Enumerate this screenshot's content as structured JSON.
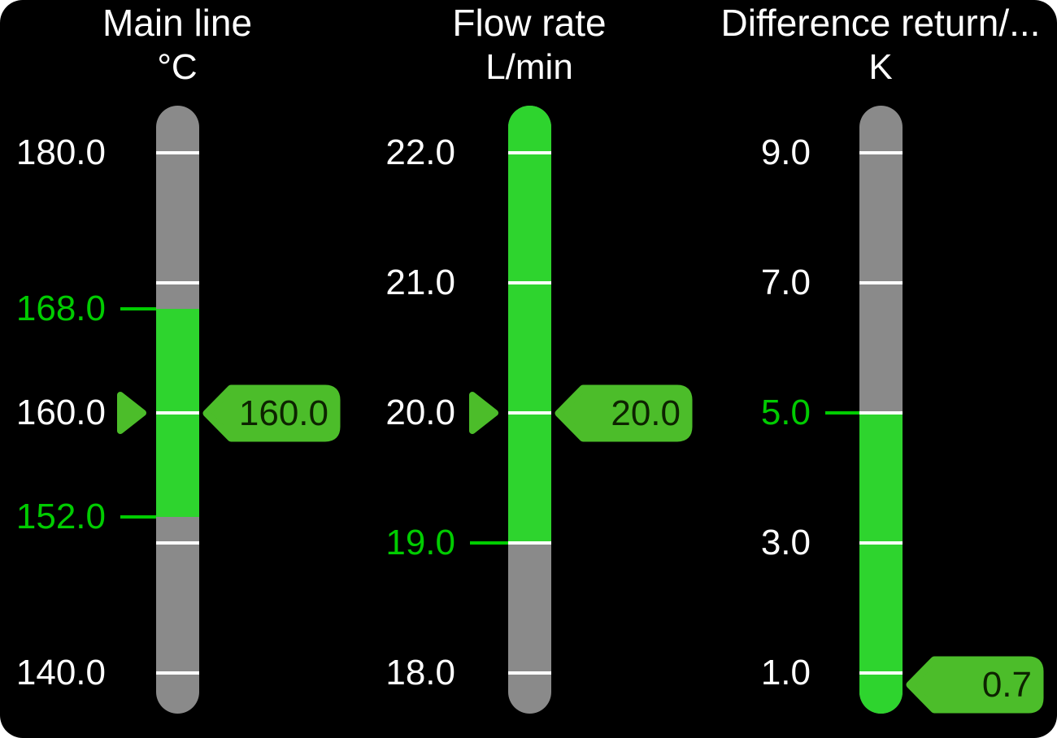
{
  "screen": {
    "name": "hmi-gauge-screen"
  },
  "colors": {
    "background": "#000000",
    "page_background": "#ffffff",
    "track_gray": "#8a8a8a",
    "band_green": "#2ed42e",
    "limit_green": "#00cc00",
    "indicator_green": "#4cbd2a",
    "tag_text": "#0d2300",
    "tick_white": "#ffffff",
    "label_white": "#ffffff"
  },
  "gauges": [
    {
      "title": "Main line",
      "unit": "°C",
      "scale": {
        "min": 140,
        "max": 180
      },
      "ticks": [
        {
          "value": 180,
          "label": "180.0"
        },
        {
          "value": 170,
          "label": ""
        },
        {
          "value": 160,
          "label": "160.0"
        },
        {
          "value": 150,
          "label": ""
        },
        {
          "value": 140,
          "label": "140.0"
        }
      ],
      "limits": [
        {
          "type": "high",
          "value": 168.0,
          "label": "168.0"
        },
        {
          "type": "low",
          "value": 152.0,
          "label": "152.0"
        }
      ],
      "value": 160.0,
      "value_label": "160.0",
      "show_left_pointer": true
    },
    {
      "title": "Flow rate",
      "unit": "L/min",
      "scale": {
        "min": 18,
        "max": 22
      },
      "ticks": [
        {
          "value": 22,
          "label": "22.0"
        },
        {
          "value": 21,
          "label": "21.0"
        },
        {
          "value": 20,
          "label": "20.0"
        },
        {
          "value": 19,
          "label": ""
        },
        {
          "value": 18,
          "label": "18.0"
        }
      ],
      "limits": [
        {
          "type": "low",
          "value": 19.0,
          "label": "19.0"
        }
      ],
      "value": 20.0,
      "value_label": "20.0",
      "show_left_pointer": true
    },
    {
      "title": "Difference return/...",
      "unit": "K",
      "scale": {
        "min": 1,
        "max": 9
      },
      "ticks": [
        {
          "value": 9,
          "label": "9.0"
        },
        {
          "value": 7,
          "label": "7.0"
        },
        {
          "value": 5,
          "label": ""
        },
        {
          "value": 3,
          "label": "3.0"
        },
        {
          "value": 1,
          "label": "1.0"
        }
      ],
      "limits": [
        {
          "type": "high",
          "value": 5.0,
          "label": "5.0"
        }
      ],
      "value": 0.7,
      "value_label": "0.7",
      "show_left_pointer": false
    }
  ],
  "chart_data": [
    {
      "type": "bar",
      "title": "Main line",
      "ylabel": "°C",
      "value": 160.0,
      "ylim": [
        140,
        180
      ],
      "tick_values": [
        180,
        170,
        160,
        150,
        140
      ],
      "tick_labels_shown": [
        "180.0",
        "160.0",
        "140.0"
      ],
      "limit_high": 168.0,
      "limit_low": 152.0,
      "green_zone": [
        152.0,
        168.0
      ]
    },
    {
      "type": "bar",
      "title": "Flow rate",
      "ylabel": "L/min",
      "value": 20.0,
      "ylim": [
        18,
        22
      ],
      "tick_values": [
        22,
        21,
        20,
        19,
        18
      ],
      "tick_labels_shown": [
        "22.0",
        "21.0",
        "20.0",
        "18.0"
      ],
      "limit_low": 19.0,
      "green_zone": [
        19.0,
        null
      ]
    },
    {
      "type": "bar",
      "title": "Difference return/...",
      "ylabel": "K",
      "value": 0.7,
      "ylim": [
        1,
        9
      ],
      "tick_values": [
        9,
        7,
        5,
        3,
        1
      ],
      "tick_labels_shown": [
        "9.0",
        "7.0",
        "3.0",
        "1.0"
      ],
      "limit_high": 5.0,
      "green_zone": [
        null,
        5.0
      ]
    }
  ]
}
